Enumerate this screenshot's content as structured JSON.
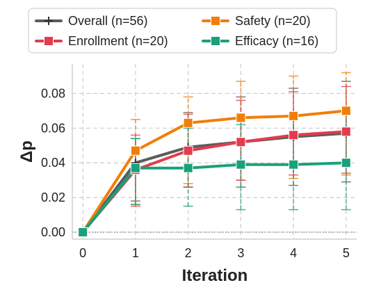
{
  "chart_data": {
    "type": "line",
    "xlabel": "Iteration",
    "ylabel": "Δp",
    "x": [
      0,
      1,
      2,
      3,
      4,
      5
    ],
    "xlim": [
      -0.2,
      5.2
    ],
    "ylim": [
      -0.004,
      0.097
    ],
    "y_ticks": [
      0.0,
      0.02,
      0.04,
      0.06,
      0.08
    ],
    "y_tick_labels": [
      "0.00",
      "0.02",
      "0.04",
      "0.06",
      "0.08"
    ],
    "x_tick_labels": [
      "0",
      "1",
      "2",
      "3",
      "4",
      "5"
    ],
    "grid": true,
    "grid_style": "dashed",
    "zero_line": true,
    "legend_position": "top",
    "series": [
      {
        "name": "Overall (n=56)",
        "color": "#5c5c5c",
        "marker": "plus",
        "values": [
          0.0,
          0.04,
          0.049,
          0.052,
          0.055,
          0.057
        ],
        "err_low": [
          0.0,
          0.018,
          0.026,
          0.026,
          0.027,
          0.029
        ],
        "err_high": [
          0.0,
          0.054,
          0.069,
          0.078,
          0.083,
          0.087
        ]
      },
      {
        "name": "Safety (n=20)",
        "color": "#f07f09",
        "marker": "square",
        "values": [
          0.0,
          0.047,
          0.063,
          0.066,
          0.067,
          0.07
        ],
        "err_low": [
          0.0,
          0.016,
          0.028,
          0.03,
          0.031,
          0.033
        ],
        "err_high": [
          0.0,
          0.065,
          0.078,
          0.087,
          0.09,
          0.092
        ]
      },
      {
        "name": "Enrollment (n=20)",
        "color": "#e23c4e",
        "marker": "square",
        "values": [
          0.0,
          0.036,
          0.047,
          0.052,
          0.056,
          0.058
        ],
        "err_low": [
          0.0,
          0.015,
          0.026,
          0.03,
          0.033,
          0.034
        ],
        "err_high": [
          0.0,
          0.056,
          0.068,
          0.076,
          0.081,
          0.084
        ]
      },
      {
        "name": "Efficacy (n=16)",
        "color": "#1aa07a",
        "marker": "square",
        "values": [
          0.0,
          0.037,
          0.037,
          0.039,
          0.039,
          0.04
        ],
        "err_low": [
          0.0,
          0.016,
          0.015,
          0.013,
          0.013,
          0.013
        ],
        "err_high": [
          0.0,
          0.054,
          0.06,
          0.062,
          0.066,
          0.068
        ]
      }
    ]
  }
}
